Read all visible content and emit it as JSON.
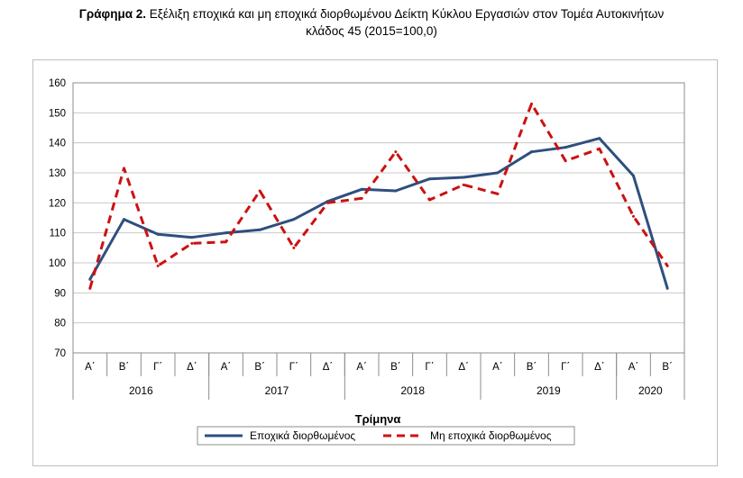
{
  "title": {
    "lead": "Γράφημα 2.",
    "line1": "Εξέλιξη εποχικά και μη εποχικά διορθωμένου Δείκτη Κύκλου Εργασιών στον Τομέα Αυτοκινήτων",
    "line2": "κλάδος 45 (2015=100,0)"
  },
  "chart_data": {
    "type": "line",
    "title": "Γράφημα 2. Εξέλιξη εποχικά και μη εποχικά διορθωμένου Δείκτη Κύκλου Εργασιών στον Τομέα Αυτοκινήτων κλάδος 45 (2015=100,0)",
    "xlabel": "Τρίμηνα",
    "ylabel": "",
    "ylim": [
      70,
      160
    ],
    "yticks": [
      70,
      80,
      90,
      100,
      110,
      120,
      130,
      140,
      150,
      160
    ],
    "grid": true,
    "legend": "bottom",
    "quarters": [
      "Α΄",
      "Β΄",
      "Γ΄",
      "Δ΄",
      "Α΄",
      "Β΄",
      "Γ΄",
      "Δ΄",
      "Α΄",
      "Β΄",
      "Γ΄",
      "Δ΄",
      "Α΄",
      "Β΄",
      "Γ΄",
      "Δ΄",
      "Α΄",
      "Β΄"
    ],
    "years": [
      {
        "label": "2016",
        "count": 4
      },
      {
        "label": "2017",
        "count": 4
      },
      {
        "label": "2018",
        "count": 4
      },
      {
        "label": "2019",
        "count": 4
      },
      {
        "label": "2020",
        "count": 2
      }
    ],
    "series": [
      {
        "name": "Εποχικά διορθωμένος",
        "color": "#2e4f7f",
        "style": "solid",
        "values": [
          94.5,
          114.5,
          109.5,
          108.5,
          110.0,
          111.0,
          114.5,
          120.5,
          124.5,
          124.0,
          128.0,
          128.5,
          130.0,
          137.0,
          138.5,
          141.5,
          129.0,
          91.5
        ]
      },
      {
        "name": "Μη εποχικά διορθωμένος",
        "color": "#cc1111",
        "style": "dashed",
        "values": [
          91.5,
          131.5,
          99.0,
          106.5,
          107.0,
          124.0,
          105.0,
          120.0,
          121.5,
          137.0,
          121.0,
          126.0,
          123.0,
          153.0,
          134.0,
          138.0,
          115.5,
          99.0
        ]
      }
    ]
  }
}
